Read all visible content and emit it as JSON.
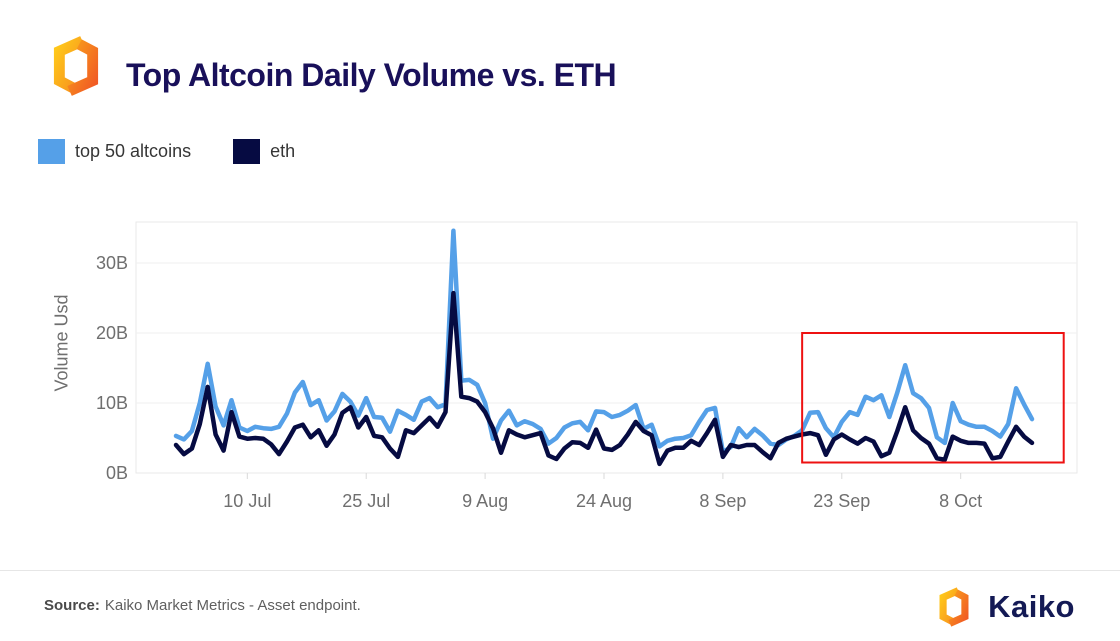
{
  "chart_data": {
    "type": "line",
    "title": "Top Altcoin Daily Volume vs. ETH",
    "ylabel": "Volume Usd",
    "xlabel": "",
    "x_range_dates": [
      "1 Jul",
      "17 Oct"
    ],
    "x_ticks": [
      {
        "index": 9,
        "label": "10 Jul"
      },
      {
        "index": 24,
        "label": "25 Jul"
      },
      {
        "index": 39,
        "label": "9 Aug"
      },
      {
        "index": 54,
        "label": "24 Aug"
      },
      {
        "index": 69,
        "label": "8 Sep"
      },
      {
        "index": 84,
        "label": "23 Sep"
      },
      {
        "index": 99,
        "label": "8 Oct"
      }
    ],
    "y_ticks": [
      {
        "value": 0,
        "label": "0B"
      },
      {
        "value": 10,
        "label": "10B"
      },
      {
        "value": 20,
        "label": "20B"
      },
      {
        "value": 30,
        "label": "30B"
      }
    ],
    "ylim": [
      0,
      35.8
    ],
    "unit": "USD billions",
    "grid": true,
    "legend_position": "top-left",
    "series": [
      {
        "name": "top 50 altcoins",
        "color": "#55A0E8",
        "values": [
          5.3,
          4.8,
          6.0,
          10.0,
          15.6,
          9.5,
          6.8,
          10.4,
          6.5,
          6.0,
          6.6,
          6.4,
          6.3,
          6.6,
          8.5,
          11.5,
          13.0,
          9.7,
          10.4,
          7.5,
          8.8,
          11.3,
          10.2,
          8.2,
          10.7,
          8.0,
          7.9,
          5.9,
          8.9,
          8.3,
          7.6,
          10.2,
          10.7,
          9.4,
          9.8,
          34.6,
          13.2,
          13.3,
          12.6,
          10.0,
          4.9,
          7.5,
          8.9,
          6.8,
          7.4,
          7.0,
          6.3,
          4.2,
          5.0,
          6.5,
          7.1,
          7.3,
          6.1,
          8.8,
          8.7,
          8.0,
          8.3,
          8.9,
          9.7,
          6.3,
          6.9,
          3.8,
          4.6,
          4.9,
          5.0,
          5.4,
          7.3,
          9.0,
          9.3,
          3.0,
          3.7,
          6.4,
          5.1,
          6.3,
          5.4,
          4.2,
          4.0,
          4.8,
          5.3,
          6.1,
          8.6,
          8.7,
          6.4,
          5.1,
          7.3,
          8.7,
          8.3,
          10.9,
          10.4,
          11.1,
          8.0,
          11.5,
          15.4,
          11.4,
          10.7,
          9.3,
          5.1,
          4.3,
          10.0,
          7.4,
          6.9,
          6.6,
          6.6,
          6.0,
          5.2,
          7.0,
          12.1,
          9.8,
          7.7
        ]
      },
      {
        "name": "eth",
        "color": "#060B42",
        "values": [
          4.0,
          2.7,
          3.5,
          7.0,
          12.3,
          5.5,
          3.2,
          8.7,
          5.2,
          4.9,
          5.0,
          4.9,
          4.1,
          2.7,
          4.5,
          6.5,
          6.9,
          5.1,
          6.1,
          3.9,
          5.5,
          8.6,
          9.4,
          6.5,
          8.0,
          5.3,
          5.1,
          3.5,
          2.3,
          6.1,
          5.7,
          6.8,
          7.9,
          6.6,
          8.7,
          25.7,
          10.9,
          10.7,
          10.2,
          8.7,
          6.4,
          2.9,
          6.1,
          5.5,
          5.1,
          5.4,
          5.7,
          2.5,
          2.0,
          3.5,
          4.4,
          4.3,
          3.6,
          6.2,
          3.5,
          3.3,
          4.0,
          5.5,
          7.3,
          6.0,
          5.4,
          1.3,
          3.2,
          3.6,
          3.6,
          4.6,
          4.0,
          5.7,
          7.6,
          2.3,
          4.0,
          3.7,
          4.0,
          4.0,
          3.0,
          2.1,
          4.3,
          4.9,
          5.2,
          5.5,
          5.7,
          5.4,
          2.6,
          4.8,
          5.5,
          4.8,
          4.2,
          5.0,
          4.5,
          2.4,
          2.9,
          6.0,
          9.4,
          6.1,
          5.0,
          4.2,
          2.1,
          1.9,
          5.2,
          4.6,
          4.3,
          4.3,
          4.2,
          2.1,
          2.3,
          4.5,
          6.6,
          5.2,
          4.3
        ]
      }
    ],
    "annotation": {
      "type": "rect",
      "color": "#EE1111",
      "x_day_range": [
        79,
        112
      ],
      "y_range_billions": [
        1.5,
        20
      ]
    }
  },
  "footer": {
    "source_label": "Source:",
    "source_text": "Kaiko Market Metrics - Asset endpoint.",
    "brand": "Kaiko"
  }
}
